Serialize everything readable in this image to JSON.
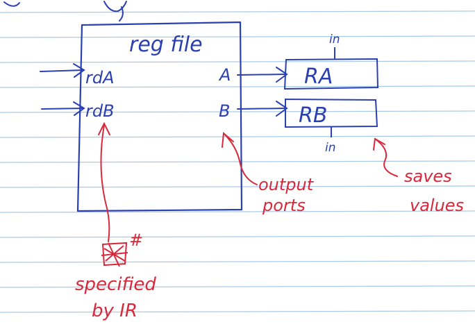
{
  "colors": {
    "paper": "#ffffff",
    "ruled_line": "#a9cbe8",
    "ink_blue": "#2a3fb0",
    "ink_red": "#d8283b"
  },
  "diagram": {
    "reg_file": {
      "title": "reg file",
      "ports_in": [
        "rdA",
        "rdB"
      ],
      "ports_out": [
        "A",
        "B"
      ]
    },
    "registers": [
      {
        "label": "RA",
        "input_label": "in"
      },
      {
        "label": "RB",
        "input_label": "in"
      }
    ],
    "annotations": {
      "output_ports": [
        "output",
        "ports"
      ],
      "saves_values": [
        "saves",
        "values"
      ],
      "specified": {
        "mark": "#",
        "line1": "specified",
        "line2": "by IR"
      }
    }
  }
}
